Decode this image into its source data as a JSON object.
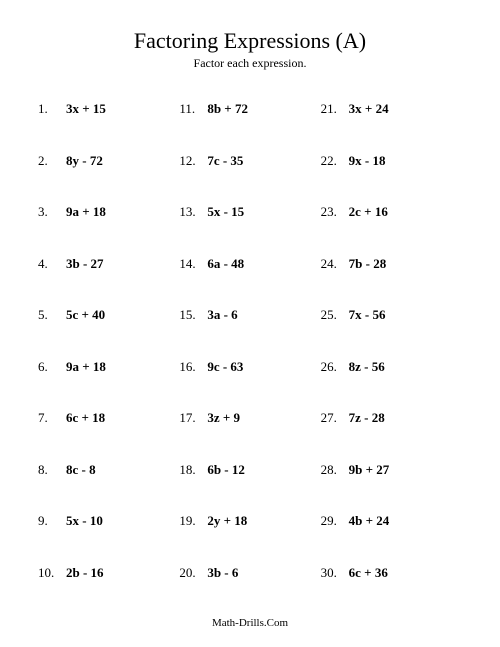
{
  "title": "Factoring Expressions (A)",
  "subtitle": "Factor each expression.",
  "footer": "Math-Drills.Com",
  "columns": [
    {
      "items": [
        {
          "n": "1.",
          "e": "3x + 15"
        },
        {
          "n": "2.",
          "e": "8y - 72"
        },
        {
          "n": "3.",
          "e": "9a + 18"
        },
        {
          "n": "4.",
          "e": "3b - 27"
        },
        {
          "n": "5.",
          "e": "5c + 40"
        },
        {
          "n": "6.",
          "e": "9a + 18"
        },
        {
          "n": "7.",
          "e": "6c + 18"
        },
        {
          "n": "8.",
          "e": "8c - 8"
        },
        {
          "n": "9.",
          "e": "5x - 10"
        },
        {
          "n": "10.",
          "e": "2b - 16"
        }
      ]
    },
    {
      "items": [
        {
          "n": "11.",
          "e": "8b + 72"
        },
        {
          "n": "12.",
          "e": "7c - 35"
        },
        {
          "n": "13.",
          "e": "5x - 15"
        },
        {
          "n": "14.",
          "e": "6a - 48"
        },
        {
          "n": "15.",
          "e": "3a - 6"
        },
        {
          "n": "16.",
          "e": "9c - 63"
        },
        {
          "n": "17.",
          "e": "3z + 9"
        },
        {
          "n": "18.",
          "e": "6b - 12"
        },
        {
          "n": "19.",
          "e": "2y + 18"
        },
        {
          "n": "20.",
          "e": "3b - 6"
        }
      ]
    },
    {
      "items": [
        {
          "n": "21.",
          "e": "3x + 24"
        },
        {
          "n": "22.",
          "e": "9x - 18"
        },
        {
          "n": "23.",
          "e": "2c + 16"
        },
        {
          "n": "24.",
          "e": "7b - 28"
        },
        {
          "n": "25.",
          "e": "7x - 56"
        },
        {
          "n": "26.",
          "e": "8z - 56"
        },
        {
          "n": "27.",
          "e": "7z - 28"
        },
        {
          "n": "28.",
          "e": "9b + 27"
        },
        {
          "n": "29.",
          "e": "4b + 24"
        },
        {
          "n": "30.",
          "e": "6c + 36"
        }
      ]
    }
  ]
}
